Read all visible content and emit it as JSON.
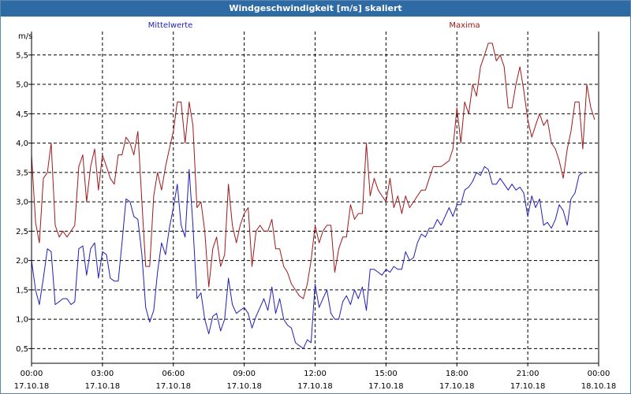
{
  "window": {
    "title": "Windgeschwindigkeit [m/s] skaliert"
  },
  "colors": {
    "title_bg": "#2e6aa3",
    "mittelwerte": "#1f1fb8",
    "maxima": "#a01818",
    "grid": "#000000"
  },
  "chart_data": {
    "type": "line",
    "title": "Windgeschwindigkeit [m/s] skaliert",
    "ylabel": "m/s",
    "xlabel": "",
    "ylim": [
      0.25,
      5.9
    ],
    "yticks": [
      "0,5",
      "1,0",
      "1,5",
      "2,0",
      "2,5",
      "3,0",
      "3,5",
      "4,0",
      "4,5",
      "5,0",
      "5,5"
    ],
    "yticks_values": [
      0.5,
      1.0,
      1.5,
      2.0,
      2.5,
      3.0,
      3.5,
      4.0,
      4.5,
      5.0,
      5.5
    ],
    "xticks": [
      {
        "time": "00:00",
        "date": "17.10.18"
      },
      {
        "time": "03:00",
        "date": "17.10.18"
      },
      {
        "time": "06:00",
        "date": "17.10.18"
      },
      {
        "time": "09:00",
        "date": "17.10.18"
      },
      {
        "time": "12:00",
        "date": "17.10.18"
      },
      {
        "time": "15:00",
        "date": "17.10.18"
      },
      {
        "time": "18:00",
        "date": "17.10.18"
      },
      {
        "time": "21:00",
        "date": "17.10.18"
      },
      {
        "time": "00:00",
        "date": "18.10.18"
      }
    ],
    "x_hours_range": [
      0,
      24
    ],
    "grid": true,
    "series": [
      {
        "name": "Mittelwerte",
        "points": [
          [
            0.0,
            2.0
          ],
          [
            0.17,
            1.5
          ],
          [
            0.33,
            1.25
          ],
          [
            0.5,
            1.7
          ],
          [
            0.67,
            2.2
          ],
          [
            0.83,
            2.15
          ],
          [
            1.0,
            1.25
          ],
          [
            1.17,
            1.3
          ],
          [
            1.33,
            1.35
          ],
          [
            1.5,
            1.35
          ],
          [
            1.67,
            1.25
          ],
          [
            1.83,
            1.3
          ],
          [
            2.0,
            2.2
          ],
          [
            2.17,
            2.25
          ],
          [
            2.33,
            1.75
          ],
          [
            2.5,
            2.2
          ],
          [
            2.67,
            2.3
          ],
          [
            2.83,
            1.7
          ],
          [
            3.0,
            2.15
          ],
          [
            3.17,
            2.1
          ],
          [
            3.33,
            1.7
          ],
          [
            3.5,
            1.65
          ],
          [
            3.67,
            1.65
          ],
          [
            3.83,
            2.3
          ],
          [
            4.0,
            3.05
          ],
          [
            4.17,
            3.0
          ],
          [
            4.33,
            2.75
          ],
          [
            4.5,
            2.7
          ],
          [
            4.67,
            2.1
          ],
          [
            4.83,
            1.2
          ],
          [
            5.0,
            0.95
          ],
          [
            5.17,
            1.15
          ],
          [
            5.33,
            1.8
          ],
          [
            5.5,
            2.3
          ],
          [
            5.67,
            2.1
          ],
          [
            5.83,
            2.55
          ],
          [
            6.0,
            2.9
          ],
          [
            6.17,
            3.3
          ],
          [
            6.33,
            2.6
          ],
          [
            6.5,
            2.4
          ],
          [
            6.67,
            3.55
          ],
          [
            6.83,
            2.6
          ],
          [
            7.0,
            1.35
          ],
          [
            7.17,
            1.45
          ],
          [
            7.33,
            1.0
          ],
          [
            7.5,
            0.75
          ],
          [
            7.67,
            1.05
          ],
          [
            7.83,
            1.1
          ],
          [
            8.0,
            0.8
          ],
          [
            8.17,
            1.0
          ],
          [
            8.33,
            1.7
          ],
          [
            8.5,
            1.25
          ],
          [
            8.67,
            1.1
          ],
          [
            8.83,
            1.15
          ],
          [
            9.0,
            1.2
          ],
          [
            9.17,
            1.1
          ],
          [
            9.33,
            0.85
          ],
          [
            9.5,
            1.05
          ],
          [
            9.67,
            1.2
          ],
          [
            9.83,
            1.35
          ],
          [
            10.0,
            1.15
          ],
          [
            10.17,
            1.55
          ],
          [
            10.33,
            1.1
          ],
          [
            10.5,
            1.35
          ],
          [
            10.67,
            1.0
          ],
          [
            10.83,
            0.9
          ],
          [
            11.0,
            0.85
          ],
          [
            11.17,
            0.6
          ],
          [
            11.33,
            0.55
          ],
          [
            11.5,
            0.5
          ],
          [
            11.67,
            0.65
          ],
          [
            11.83,
            0.6
          ],
          [
            12.0,
            1.6
          ],
          [
            12.17,
            1.2
          ],
          [
            12.33,
            1.35
          ],
          [
            12.5,
            1.5
          ],
          [
            12.67,
            1.1
          ],
          [
            12.83,
            1.0
          ],
          [
            13.0,
            1.0
          ],
          [
            13.17,
            1.3
          ],
          [
            13.33,
            1.4
          ],
          [
            13.5,
            1.25
          ],
          [
            13.67,
            1.5
          ],
          [
            13.83,
            1.35
          ],
          [
            14.0,
            1.55
          ],
          [
            14.17,
            1.15
          ],
          [
            14.33,
            1.85
          ],
          [
            14.5,
            1.85
          ],
          [
            14.67,
            1.8
          ],
          [
            14.83,
            1.75
          ],
          [
            15.0,
            1.85
          ],
          [
            15.17,
            1.8
          ],
          [
            15.33,
            1.9
          ],
          [
            15.5,
            1.85
          ],
          [
            15.67,
            1.85
          ],
          [
            15.83,
            2.15
          ],
          [
            16.0,
            2.0
          ],
          [
            16.17,
            2.05
          ],
          [
            16.33,
            2.3
          ],
          [
            16.5,
            2.45
          ],
          [
            16.67,
            2.4
          ],
          [
            16.83,
            2.55
          ],
          [
            17.0,
            2.55
          ],
          [
            17.17,
            2.7
          ],
          [
            17.33,
            2.6
          ],
          [
            17.5,
            2.75
          ],
          [
            17.67,
            2.9
          ],
          [
            17.83,
            2.75
          ],
          [
            18.0,
            2.95
          ],
          [
            18.17,
            2.95
          ],
          [
            18.33,
            3.2
          ],
          [
            18.5,
            3.25
          ],
          [
            18.67,
            3.35
          ],
          [
            18.83,
            3.5
          ],
          [
            19.0,
            3.45
          ],
          [
            19.17,
            3.6
          ],
          [
            19.33,
            3.55
          ],
          [
            19.5,
            3.3
          ],
          [
            19.67,
            3.3
          ],
          [
            19.83,
            3.4
          ],
          [
            20.0,
            3.3
          ],
          [
            20.17,
            3.2
          ],
          [
            20.33,
            3.3
          ],
          [
            20.5,
            3.2
          ],
          [
            20.67,
            3.25
          ],
          [
            20.83,
            3.15
          ],
          [
            21.0,
            2.75
          ],
          [
            21.17,
            3.1
          ],
          [
            21.33,
            2.9
          ],
          [
            21.5,
            3.05
          ],
          [
            21.67,
            2.6
          ],
          [
            21.83,
            2.65
          ],
          [
            22.0,
            2.55
          ],
          [
            22.17,
            2.7
          ],
          [
            22.33,
            2.95
          ],
          [
            22.5,
            2.85
          ],
          [
            22.67,
            2.6
          ],
          [
            22.83,
            3.05
          ],
          [
            23.0,
            3.15
          ],
          [
            23.17,
            3.45
          ],
          [
            23.33,
            3.5
          ]
        ]
      },
      {
        "name": "Maxima",
        "points": [
          [
            0.0,
            3.8
          ],
          [
            0.17,
            2.65
          ],
          [
            0.33,
            2.3
          ],
          [
            0.5,
            3.4
          ],
          [
            0.67,
            3.5
          ],
          [
            0.83,
            4.0
          ],
          [
            1.0,
            2.6
          ],
          [
            1.17,
            2.4
          ],
          [
            1.33,
            2.5
          ],
          [
            1.5,
            2.4
          ],
          [
            1.67,
            2.5
          ],
          [
            1.83,
            2.6
          ],
          [
            2.0,
            3.6
          ],
          [
            2.17,
            3.8
          ],
          [
            2.33,
            3.0
          ],
          [
            2.5,
            3.6
          ],
          [
            2.67,
            3.9
          ],
          [
            2.83,
            3.2
          ],
          [
            3.0,
            3.8
          ],
          [
            3.17,
            3.6
          ],
          [
            3.33,
            3.4
          ],
          [
            3.5,
            3.3
          ],
          [
            3.67,
            3.8
          ],
          [
            3.83,
            3.8
          ],
          [
            4.0,
            4.1
          ],
          [
            4.17,
            4.0
          ],
          [
            4.33,
            3.8
          ],
          [
            4.5,
            4.2
          ],
          [
            4.67,
            3.0
          ],
          [
            4.83,
            1.9
          ],
          [
            5.0,
            1.9
          ],
          [
            5.17,
            3.1
          ],
          [
            5.33,
            3.5
          ],
          [
            5.5,
            3.2
          ],
          [
            5.67,
            3.6
          ],
          [
            5.83,
            3.9
          ],
          [
            6.0,
            4.2
          ],
          [
            6.17,
            4.7
          ],
          [
            6.33,
            4.7
          ],
          [
            6.5,
            4.0
          ],
          [
            6.67,
            4.7
          ],
          [
            6.83,
            4.3
          ],
          [
            7.0,
            2.9
          ],
          [
            7.17,
            3.0
          ],
          [
            7.33,
            2.5
          ],
          [
            7.5,
            1.55
          ],
          [
            7.67,
            2.2
          ],
          [
            7.83,
            2.4
          ],
          [
            8.0,
            1.9
          ],
          [
            8.17,
            2.1
          ],
          [
            8.33,
            3.3
          ],
          [
            8.5,
            2.6
          ],
          [
            8.67,
            2.3
          ],
          [
            8.83,
            2.6
          ],
          [
            9.0,
            2.8
          ],
          [
            9.17,
            2.9
          ],
          [
            9.33,
            1.9
          ],
          [
            9.5,
            2.5
          ],
          [
            9.67,
            2.6
          ],
          [
            9.83,
            2.5
          ],
          [
            10.0,
            2.5
          ],
          [
            10.17,
            2.7
          ],
          [
            10.33,
            2.2
          ],
          [
            10.5,
            2.2
          ],
          [
            10.67,
            1.9
          ],
          [
            10.83,
            1.8
          ],
          [
            11.0,
            1.6
          ],
          [
            11.17,
            1.5
          ],
          [
            11.33,
            1.4
          ],
          [
            11.5,
            1.35
          ],
          [
            11.67,
            1.6
          ],
          [
            11.83,
            2.0
          ],
          [
            12.0,
            2.6
          ],
          [
            12.17,
            2.3
          ],
          [
            12.33,
            2.5
          ],
          [
            12.5,
            2.6
          ],
          [
            12.67,
            2.6
          ],
          [
            12.83,
            1.8
          ],
          [
            13.0,
            2.2
          ],
          [
            13.17,
            2.4
          ],
          [
            13.33,
            2.4
          ],
          [
            13.5,
            2.95
          ],
          [
            13.67,
            2.7
          ],
          [
            13.83,
            2.8
          ],
          [
            14.0,
            2.8
          ],
          [
            14.17,
            4.0
          ],
          [
            14.33,
            3.1
          ],
          [
            14.5,
            3.4
          ],
          [
            14.67,
            3.2
          ],
          [
            14.83,
            3.1
          ],
          [
            15.0,
            3.0
          ],
          [
            15.17,
            3.4
          ],
          [
            15.33,
            2.9
          ],
          [
            15.5,
            3.1
          ],
          [
            15.67,
            2.8
          ],
          [
            15.83,
            3.1
          ],
          [
            16.0,
            2.9
          ],
          [
            16.17,
            3.0
          ],
          [
            16.33,
            3.1
          ],
          [
            16.5,
            3.2
          ],
          [
            16.67,
            3.2
          ],
          [
            16.83,
            3.4
          ],
          [
            17.0,
            3.6
          ],
          [
            17.17,
            3.6
          ],
          [
            17.33,
            3.6
          ],
          [
            17.5,
            3.65
          ],
          [
            17.67,
            3.7
          ],
          [
            17.83,
            3.9
          ],
          [
            18.0,
            4.6
          ],
          [
            18.17,
            4.0
          ],
          [
            18.33,
            4.7
          ],
          [
            18.5,
            4.5
          ],
          [
            18.67,
            5.0
          ],
          [
            18.83,
            4.8
          ],
          [
            19.0,
            5.3
          ],
          [
            19.17,
            5.5
          ],
          [
            19.33,
            5.7
          ],
          [
            19.5,
            5.7
          ],
          [
            19.67,
            5.4
          ],
          [
            19.83,
            5.5
          ],
          [
            20.0,
            5.3
          ],
          [
            20.17,
            4.6
          ],
          [
            20.33,
            4.6
          ],
          [
            20.5,
            5.0
          ],
          [
            20.67,
            5.3
          ],
          [
            20.83,
            4.9
          ],
          [
            21.0,
            4.4
          ],
          [
            21.17,
            4.1
          ],
          [
            21.33,
            4.3
          ],
          [
            21.5,
            4.5
          ],
          [
            21.67,
            4.3
          ],
          [
            21.83,
            4.4
          ],
          [
            22.0,
            4.0
          ],
          [
            22.17,
            3.9
          ],
          [
            22.33,
            3.7
          ],
          [
            22.5,
            3.4
          ],
          [
            22.67,
            3.9
          ],
          [
            22.83,
            4.2
          ],
          [
            23.0,
            4.7
          ],
          [
            23.17,
            4.7
          ],
          [
            23.33,
            3.9
          ],
          [
            23.5,
            5.0
          ],
          [
            23.67,
            4.6
          ],
          [
            23.83,
            4.4
          ]
        ]
      }
    ]
  }
}
